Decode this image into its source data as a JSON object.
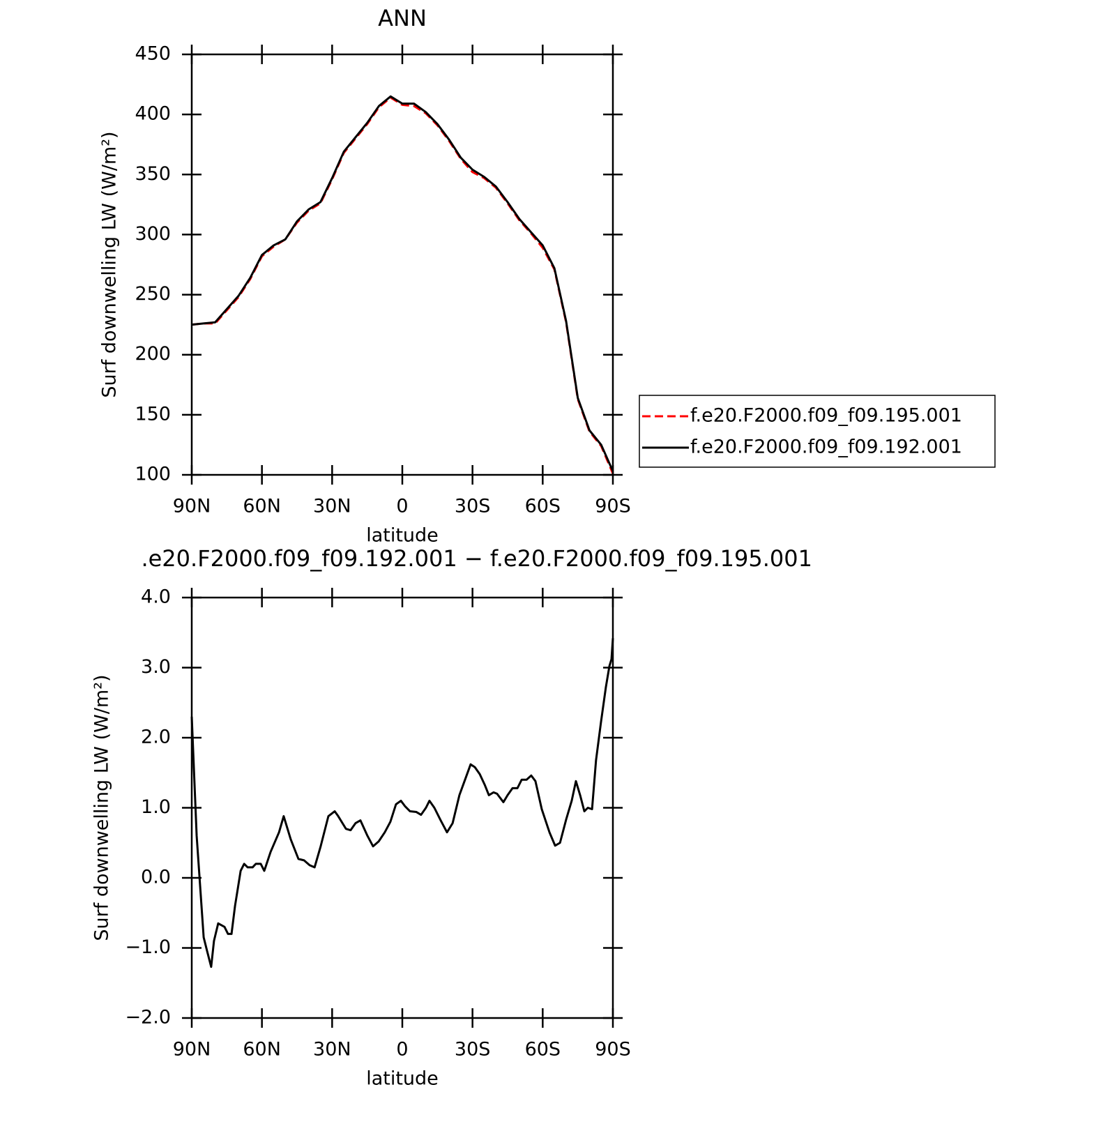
{
  "chart_data": [
    {
      "type": "line",
      "title": "ANN",
      "x_label": "latitude",
      "y_label": "Surf downwelling LW (W/m²)",
      "x": [
        90,
        85,
        80,
        75,
        70,
        65,
        60,
        55,
        50,
        45,
        40,
        35,
        30,
        25,
        20,
        15,
        10,
        5,
        0,
        -5,
        -10,
        -15,
        -20,
        -25,
        -30,
        -35,
        -40,
        -45,
        -50,
        -55,
        -60,
        -65,
        -70,
        -75,
        -80,
        -85,
        -90
      ],
      "series": [
        {
          "name": "f.e20.F2000.f09_f09.195.001",
          "color": "#ff0000",
          "dash": true,
          "values": [
            225,
            226,
            226,
            237,
            248,
            263,
            282,
            290,
            296,
            310,
            320,
            326,
            346,
            368,
            380,
            392,
            406,
            414,
            408,
            407,
            401,
            391,
            378,
            363,
            352,
            347,
            339,
            326,
            312,
            301,
            289,
            271,
            227,
            163,
            136,
            124,
            101
          ]
        },
        {
          "name": "f.e20.F2000.f09_f09.192.001",
          "color": "#000000",
          "dash": false,
          "values": [
            225,
            226,
            227,
            238,
            249,
            264,
            283,
            291,
            296,
            311,
            321,
            327,
            347,
            369,
            381,
            393,
            407,
            415,
            409,
            409,
            402,
            392,
            379,
            364,
            354,
            348,
            340,
            327,
            313,
            302,
            291,
            272,
            228,
            164,
            137,
            125,
            103
          ]
        }
      ],
      "xlim": [
        90,
        -90
      ],
      "xticks": [
        {
          "value": 90,
          "label": "90N"
        },
        {
          "value": 60,
          "label": "60N"
        },
        {
          "value": 30,
          "label": "30N"
        },
        0,
        {
          "value": -30,
          "label": "30S"
        },
        {
          "value": -60,
          "label": "60S"
        },
        {
          "value": -90,
          "label": "90S"
        }
      ],
      "ylim": [
        100,
        450
      ],
      "yticks": [
        100,
        150,
        200,
        250,
        300,
        350,
        400,
        450
      ],
      "legend": "right"
    },
    {
      "type": "line",
      "title": ".e20.F2000.f09_f09.192.001 − f.e20.F2000.f09_f09.195.001",
      "x_label": "latitude",
      "y_label": "Surf downwelling LW (W/m²)",
      "x": [
        90,
        87.9,
        84.9,
        83.4,
        81.7,
        80.5,
        78.7,
        76.0,
        74.5,
        73.0,
        71.5,
        69.1,
        67.6,
        66.1,
        64.0,
        62.6,
        60.5,
        59.0,
        56.3,
        52.7,
        50.7,
        47.7,
        44.4,
        42.0,
        39.6,
        37.5,
        34.9,
        31.6,
        28.9,
        27.4,
        24.1,
        22.1,
        20.0,
        17.9,
        14.9,
        12.5,
        10.1,
        7.5,
        5.1,
        2.7,
        0.6,
        -1.2,
        -3.3,
        -6.0,
        -8.0,
        -10.1,
        -11.6,
        -13.7,
        -16.4,
        -19.1,
        -21.5,
        -24.4,
        -26.8,
        -29.2,
        -31.0,
        -33.1,
        -35.2,
        -37.0,
        -39.0,
        -40.5,
        -43.2,
        -45.0,
        -47.1,
        -49.2,
        -51.0,
        -53.1,
        -55.1,
        -56.9,
        -59.6,
        -62.9,
        -65.3,
        -67.4,
        -70.0,
        -72.4,
        -74.2,
        -76.0,
        -77.8,
        -79.3,
        -81.1,
        -82.8,
        -84.9,
        -87.0,
        -88.5,
        -89.4,
        -90
      ],
      "series": [
        {
          "name": null,
          "color": "#000000",
          "dash": false,
          "values": [
            2.3,
            0.6,
            -0.85,
            -1.05,
            -1.27,
            -0.9,
            -0.65,
            -0.7,
            -0.8,
            -0.8,
            -0.4,
            0.1,
            0.2,
            0.15,
            0.15,
            0.2,
            0.2,
            0.1,
            0.37,
            0.65,
            0.88,
            0.55,
            0.27,
            0.25,
            0.18,
            0.15,
            0.45,
            0.88,
            0.95,
            0.88,
            0.7,
            0.68,
            0.78,
            0.82,
            0.6,
            0.45,
            0.52,
            0.65,
            0.8,
            1.05,
            1.1,
            1.02,
            0.95,
            0.94,
            0.9,
            1.0,
            1.1,
            1.0,
            0.82,
            0.65,
            0.78,
            1.18,
            1.4,
            1.62,
            1.58,
            1.48,
            1.33,
            1.18,
            1.22,
            1.2,
            1.08,
            1.18,
            1.28,
            1.28,
            1.4,
            1.4,
            1.46,
            1.38,
            0.98,
            0.65,
            0.46,
            0.5,
            0.83,
            1.1,
            1.38,
            1.18,
            0.95,
            1.0,
            0.98,
            1.68,
            2.22,
            2.72,
            3.02,
            3.12,
            3.42
          ]
        }
      ],
      "xlim": [
        90,
        -90
      ],
      "xticks": [
        {
          "value": 90,
          "label": "90N"
        },
        {
          "value": 60,
          "label": "60N"
        },
        {
          "value": 30,
          "label": "30N"
        },
        0,
        {
          "value": -30,
          "label": "30S"
        },
        {
          "value": -60,
          "label": "60S"
        },
        {
          "value": -90,
          "label": "90S"
        }
      ],
      "ylim": [
        -2,
        4
      ],
      "yticks": [
        {
          "value": -2,
          "label": "−2.0"
        },
        {
          "value": -1,
          "label": "−1.0"
        },
        {
          "value": 0,
          "label": "0.0"
        },
        {
          "value": 1,
          "label": "1.0"
        },
        {
          "value": 2,
          "label": "2.0"
        },
        {
          "value": 3,
          "label": "3.0"
        },
        {
          "value": 4,
          "label": "4.0"
        }
      ]
    }
  ]
}
